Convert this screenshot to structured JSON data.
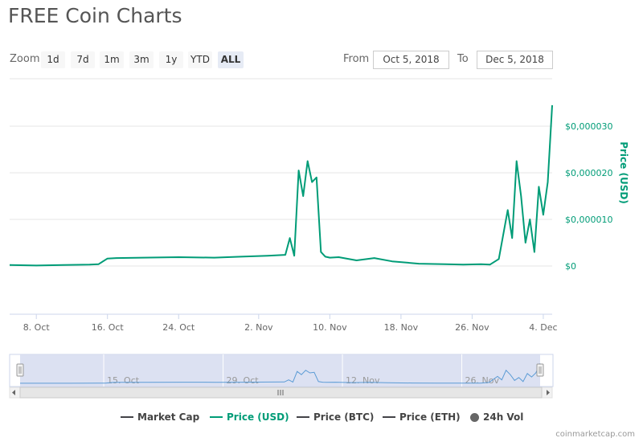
{
  "page": {
    "title": "FREE Coin Charts"
  },
  "toolbar": {
    "zoom_label": "Zoom",
    "zoom_buttons": [
      "1d",
      "7d",
      "1m",
      "3m",
      "1y",
      "YTD",
      "ALL"
    ],
    "active_zoom": "ALL",
    "from_label": "From",
    "from_value": "Oct 5, 2018",
    "to_label": "To",
    "to_value": "Dec 5, 2018"
  },
  "colors": {
    "price_usd": "#009c77",
    "market_cap": "#434348",
    "navigator_fill": "#d6dcf0",
    "navigator_line": "#5b9bd5",
    "grid": "#e6e6e6",
    "axis": "#ccd6eb"
  },
  "chart_data": {
    "type": "line",
    "title": "",
    "xlabel": "",
    "ylabel": "Price (USD)",
    "y_axis_side": "right",
    "ylim": [
      -1e-05,
      4e-05
    ],
    "grid": true,
    "legend_placement": "bottom",
    "x_ticks": [
      "8. Oct",
      "16. Oct",
      "24. Oct",
      "2. Nov",
      "10. Nov",
      "18. Nov",
      "26. Nov",
      "4. Dec"
    ],
    "y_ticks": [
      "$0",
      "$0,000010",
      "$0,000020",
      "$0,000030"
    ],
    "series": [
      {
        "name": "Price (USD)",
        "x": [
          "2018-10-05",
          "2018-10-08",
          "2018-10-11",
          "2018-10-14",
          "2018-10-15",
          "2018-10-16",
          "2018-10-17",
          "2018-10-20",
          "2018-10-24",
          "2018-10-28",
          "2018-10-31",
          "2018-11-03",
          "2018-11-05",
          "2018-11-05T12:00",
          "2018-11-06",
          "2018-11-06T12:00",
          "2018-11-07",
          "2018-11-07T12:00",
          "2018-11-08",
          "2018-11-08T12:00",
          "2018-11-09",
          "2018-11-09T12:00",
          "2018-11-10",
          "2018-11-11",
          "2018-11-13",
          "2018-11-15",
          "2018-11-17",
          "2018-11-20",
          "2018-11-23",
          "2018-11-25",
          "2018-11-27",
          "2018-11-28",
          "2018-11-29",
          "2018-11-30",
          "2018-11-30T12:00",
          "2018-12-01",
          "2018-12-01T12:00",
          "2018-12-02",
          "2018-12-02T12:00",
          "2018-12-03",
          "2018-12-03T12:00",
          "2018-12-04",
          "2018-12-04T12:00",
          "2018-12-05"
        ],
        "values": [
          2e-07,
          1e-07,
          2e-07,
          3e-07,
          4e-07,
          1.6e-06,
          1.7e-06,
          1.8e-06,
          1.9e-06,
          1.8e-06,
          2e-06,
          2.2e-06,
          2.4e-06,
          6e-06,
          2.2e-06,
          2.05e-05,
          1.5e-05,
          2.25e-05,
          1.8e-05,
          1.9e-05,
          3e-06,
          2e-06,
          1.8e-06,
          1.9e-06,
          1.2e-06,
          1.7e-06,
          1e-06,
          5e-07,
          4e-07,
          3e-07,
          4e-07,
          3e-07,
          1.5e-06,
          1.2e-05,
          6e-06,
          2.25e-05,
          1.5e-05,
          5e-06,
          1e-05,
          3e-06,
          1.7e-05,
          1.1e-05,
          1.8e-05,
          3.45e-05
        ]
      }
    ],
    "navigator": {
      "x_ticks": [
        "15. Oct",
        "29. Oct",
        "12. Nov",
        "26. Nov"
      ]
    },
    "legend": [
      {
        "name": "Market Cap",
        "color": "#434348",
        "shape": "line",
        "active": false
      },
      {
        "name": "Price (USD)",
        "color": "#009c77",
        "shape": "line",
        "active": true
      },
      {
        "name": "Price (BTC)",
        "color": "#434348",
        "shape": "line",
        "active": false
      },
      {
        "name": "Price (ETH)",
        "color": "#434348",
        "shape": "line",
        "active": false
      },
      {
        "name": "24h Vol",
        "color": "#666666",
        "shape": "dot",
        "active": false
      }
    ]
  },
  "footer": {
    "credit": "coinmarketcap.com"
  }
}
